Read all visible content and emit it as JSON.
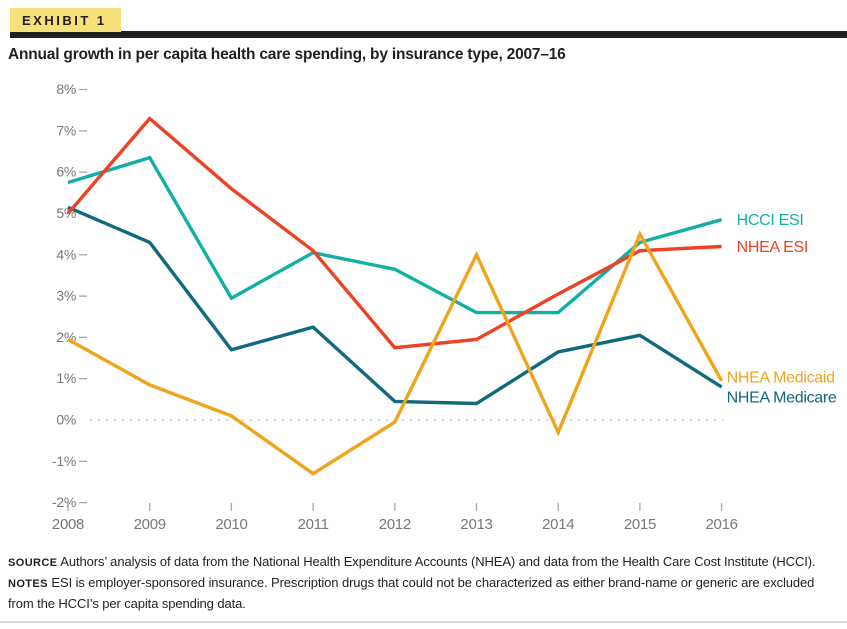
{
  "exhibit": {
    "badge": "EXHIBIT 1"
  },
  "title": "Annual growth in per capita health care spending, by insurance type, 2007–16",
  "chart_data": {
    "type": "line",
    "title": "Annual growth in per capita health care spending, by insurance type, 2007–16",
    "x": [
      2008,
      2009,
      2010,
      2011,
      2012,
      2013,
      2014,
      2015,
      2016
    ],
    "series": [
      {
        "name": "HCCI ESI",
        "color": "#10b0a6",
        "values": [
          5.75,
          6.35,
          2.95,
          4.05,
          3.65,
          2.6,
          2.6,
          4.3,
          4.85
        ],
        "label_dx": 15,
        "label_dy": 0
      },
      {
        "name": "NHEA ESI",
        "color": "#ef4123",
        "values": [
          5.0,
          7.3,
          5.6,
          4.1,
          1.75,
          1.95,
          3.05,
          4.1,
          4.2
        ],
        "label_dx": 15,
        "label_dy": 0
      },
      {
        "name": "NHEA Medicaid",
        "color": "#efa41e",
        "values": [
          1.95,
          0.85,
          0.1,
          -1.3,
          -0.05,
          4.0,
          -0.3,
          4.5,
          0.95
        ],
        "label_dx": 5,
        "label_dy": -4
      },
      {
        "name": "NHEA Medicare",
        "color": "#0f6a7d",
        "values": [
          5.15,
          4.3,
          1.7,
          2.25,
          0.45,
          0.4,
          1.65,
          2.05,
          0.8
        ],
        "label_dx": 5,
        "label_dy": 10
      }
    ],
    "draw_order": [
      "NHEA Medicare",
      "HCCI ESI",
      "NHEA ESI",
      "NHEA Medicaid"
    ],
    "ylim": [
      -2,
      8
    ],
    "y_tick_step": 1,
    "y_tick_suffix": "%",
    "grid": "dotted-zero-line-only",
    "legend_position": "right-of-line-ends"
  },
  "footer": {
    "source_label": "SOURCE",
    "source_text": "Authors’ analysis of data from the National Health Expenditure Accounts (NHEA) and data from the Health Care Cost Institute (HCCI).",
    "notes_label": "NOTES",
    "notes_text": "ESI is employer-sponsored insurance. Prescription drugs that could not be characterized as either brand-name or generic are excluded from the HCCI’s per capita spending data."
  }
}
